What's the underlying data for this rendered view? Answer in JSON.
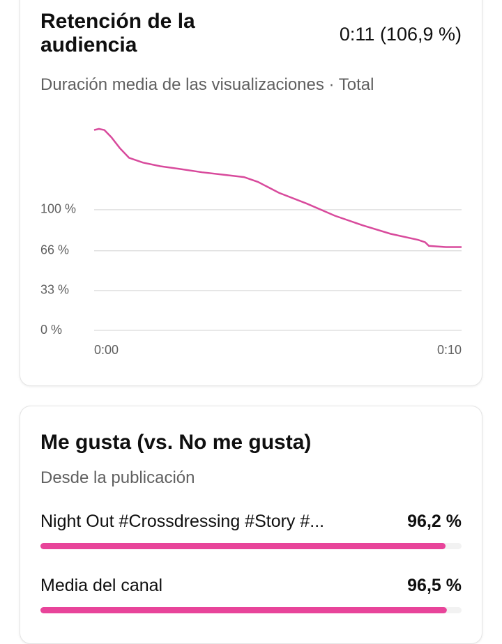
{
  "retention": {
    "title": "Retención de la audiencia",
    "summary": "0:11 (106,9 %)",
    "subtitle": "Duración media de las visualizaciones · Total",
    "chart_data": {
      "type": "line",
      "x": [
        0,
        0.13,
        0.28,
        0.47,
        0.7,
        0.95,
        1.33,
        1.8,
        2.28,
        2.94,
        3.51,
        4.08,
        4.46,
        5.03,
        5.79,
        6.55,
        7.31,
        8.07,
        8.82,
        9.01,
        9.11,
        9.58,
        10
      ],
      "series": [
        {
          "color": "#d84a9c",
          "values": [
            166,
            167,
            166,
            160,
            151,
            143,
            139,
            136,
            134,
            131,
            129,
            127,
            123,
            114,
            105,
            95,
            87,
            80,
            75,
            73,
            70,
            69,
            69
          ]
        }
      ],
      "xlim": [
        0,
        10
      ],
      "xticks": [
        {
          "value": 0,
          "label": "0:00"
        },
        {
          "value": 10,
          "label": "0:10"
        }
      ],
      "ylim": [
        0,
        175
      ],
      "yticks": [
        {
          "value": 0,
          "label": "0 %"
        },
        {
          "value": 33,
          "label": "33 %"
        },
        {
          "value": 66,
          "label": "66 %"
        },
        {
          "value": 100,
          "label": "100 %"
        }
      ],
      "grid": true
    }
  },
  "likes": {
    "title": "Me gusta (vs. No me gusta)",
    "subtitle": "Desde la publicación",
    "chart_data": {
      "type": "bar",
      "categories": [
        "Night Out #Crossdressing #Story #...",
        "Media del canal"
      ],
      "values": [
        96.2,
        96.5
      ],
      "value_labels": [
        "96,2 %",
        "96,5 %"
      ],
      "color": "#e8449a",
      "xlim": [
        0,
        100
      ]
    }
  }
}
